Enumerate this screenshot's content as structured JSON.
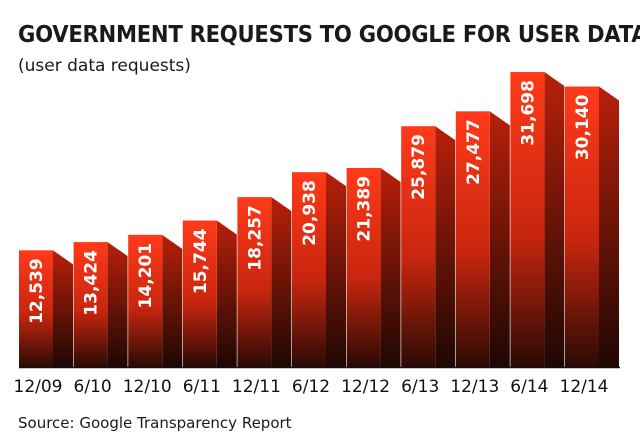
{
  "chart_data": {
    "type": "bar",
    "title": "GOVERNMENT REQUESTS TO GOOGLE FOR USER DATA",
    "subtitle": "(user data requests)",
    "categories": [
      "12/09",
      "6/10",
      "12/10",
      "6/11",
      "12/11",
      "6/12",
      "12/12",
      "6/13",
      "12/13",
      "6/14",
      "12/14"
    ],
    "values": [
      12539,
      13424,
      14201,
      15744,
      18257,
      20938,
      21389,
      25879,
      27477,
      31698,
      30140
    ],
    "data_labels": [
      "12,539",
      "13,424",
      "14,201",
      "15,744",
      "18,257",
      "20,938",
      "21,389",
      "25,879",
      "27,477",
      "31,698",
      "30,140"
    ],
    "source": "Source: Google Transparency Report",
    "colors": {
      "bar_top": "#ff3a1a",
      "bar_bottom": "#2a0a04",
      "bar_side_top": "#b8200a",
      "bar_side_bottom": "#1e0703",
      "baseline": "#111111"
    }
  }
}
